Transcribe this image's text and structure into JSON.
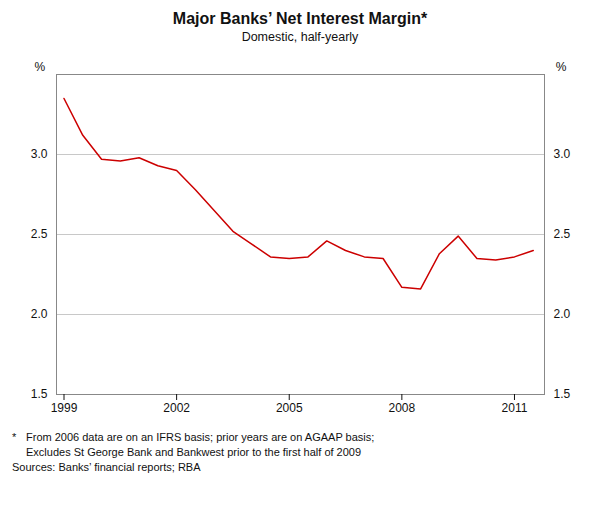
{
  "chart_data": {
    "type": "line",
    "title": "Major Banks’ Net Interest Margin*",
    "subtitle": "Domestic, half-yearly",
    "ylabel": "%",
    "y2label": "%",
    "footnote_marker": "*",
    "notes": [
      "From 2006 data are on an IFRS basis; prior years are on AGAAP basis;",
      "Excludes St George Bank and Bankwest prior to the first half of 2009"
    ],
    "source": "Sources: Banks’ financial reports; RBA",
    "color": "#cc0000",
    "x": [
      1999.0,
      1999.5,
      2000.0,
      2000.5,
      2001.0,
      2001.5,
      2002.0,
      2002.5,
      2003.0,
      2003.5,
      2004.0,
      2004.5,
      2005.0,
      2005.5,
      2006.0,
      2006.5,
      2007.0,
      2007.5,
      2008.0,
      2008.5,
      2009.0,
      2009.5,
      2010.0,
      2010.5,
      2011.0,
      2011.5
    ],
    "values": [
      3.35,
      3.12,
      2.97,
      2.96,
      2.98,
      2.93,
      2.9,
      2.78,
      2.65,
      2.52,
      2.44,
      2.36,
      2.35,
      2.36,
      2.46,
      2.4,
      2.36,
      2.35,
      2.17,
      2.16,
      2.38,
      2.49,
      2.35,
      2.34,
      2.36,
      2.4
    ],
    "xlim": [
      1998.8,
      2011.8
    ],
    "xticks": [
      1999,
      2002,
      2005,
      2008,
      2011
    ],
    "ylim": [
      1.5,
      3.5
    ],
    "yticks": [
      1.5,
      {
        "value": 2.0,
        "label": "2.0"
      },
      2.5,
      {
        "value": 3.0,
        "label": "3.0"
      }
    ],
    "y2lim": [
      1.5,
      3.5
    ],
    "y2ticks": [
      1.5,
      {
        "value": 2.0,
        "label": "2.0"
      },
      2.5,
      {
        "value": 3.0,
        "label": "3.0"
      }
    ],
    "grid": "y"
  }
}
